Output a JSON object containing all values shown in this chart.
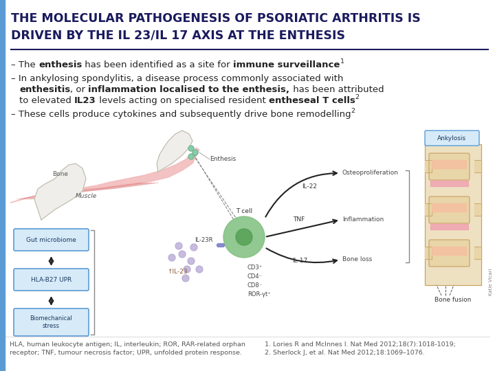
{
  "bg_color": "#ffffff",
  "left_bar_color": "#5b9bd5",
  "title_color": "#1a1a5e",
  "divider_color": "#1a1a5e",
  "body_color": "#222222",
  "diagram_bg": "#ffffff",
  "title_line1": "THE MOLECULAR PATHOGENESIS OF PSORIATIC ARTHRITIS IS",
  "title_line2": "DRIVEN BY THE IL 23/IL 17 AXIS AT THE ENTHESIS",
  "font_size_title": 12.5,
  "font_size_body": 9.5,
  "font_size_small": 7.0,
  "font_size_footnote": 6.8,
  "gut_box_color": "#d6eaf8",
  "gut_box_edge": "#5b9bd5",
  "hla_box_color": "#d6eaf8",
  "hla_box_edge": "#5b9bd5",
  "bio_box_color": "#d6eaf8",
  "bio_box_edge": "#5b9bd5",
  "ankylosis_box_color": "#d6eaf8",
  "ankylosis_box_edge": "#5b9bd5",
  "tcell_color": "#7fbf7f",
  "tcell_inner": "#4a9a4a",
  "il23_dot_color": "#b0a0d0",
  "footnote_left": "HLA, human leukocyte antigen; IL, interleukin; ROR, RAR-related orphan\nreceptor; TNF, tumour necrosis factor; UPR, unfolded protein response.",
  "footnote_right1": "1. Lories R and McInnes I. Nat Med 2012;18(7):1018-1019;",
  "footnote_right2": "2. Sherlock J, et al. Nat Med 2012;18:1069–1076.",
  "spine_body_color": "#e8d5a8",
  "spine_disc_color": "#f5c0a0",
  "spine_pink_color": "#f0a0b0",
  "spine_outline": "#c8a060"
}
